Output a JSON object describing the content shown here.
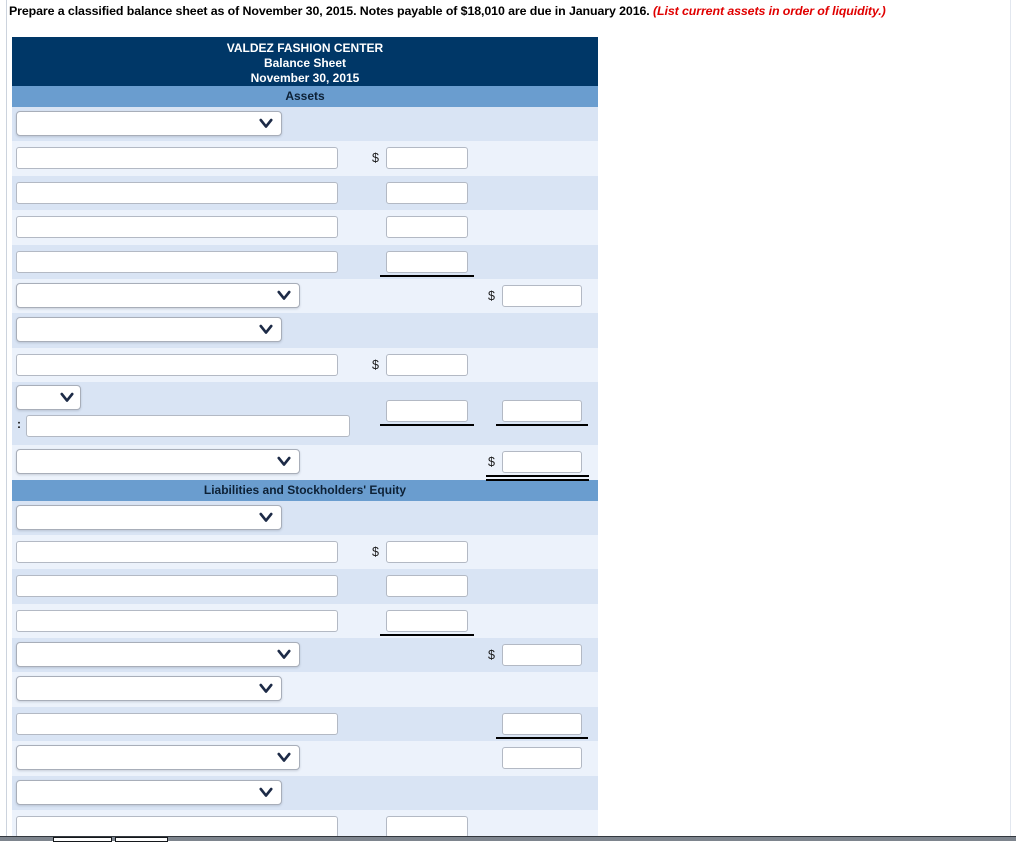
{
  "page": {
    "instruction_main": "Prepare a classified balance sheet as of November 30, 2015. Notes payable of $18,010 are due in January 2016. ",
    "instruction_emphasis": "(List current assets in order of liquidity.)"
  },
  "statement": {
    "company": "VALDEZ FASHION CENTER",
    "report": "Balance Sheet",
    "date": "November 30, 2015",
    "assets_header": "Assets",
    "liabilities_header": "Liabilities and Stockholders' Equity",
    "dollar_sign": "$",
    "less_separator": ":"
  },
  "colors": {
    "header_navy": "#003767",
    "section_bar_blue": "#6a9dcf",
    "row_dark": "#d9e4f4",
    "row_light": "#ecf2fb",
    "emphasis_red": "#e00000",
    "rule_black": "#000000"
  },
  "form": {
    "assets_rows": [
      {
        "bg": "dark",
        "cells": [
          {
            "type": "select",
            "size": "lg"
          }
        ]
      },
      {
        "bg": "light",
        "cells": [
          {
            "type": "text-input"
          },
          {
            "type": "amount",
            "col": "mid",
            "dollar": true
          }
        ]
      },
      {
        "bg": "dark",
        "cells": [
          {
            "type": "text-input"
          },
          {
            "type": "amount",
            "col": "mid"
          }
        ]
      },
      {
        "bg": "light",
        "cells": [
          {
            "type": "text-input"
          },
          {
            "type": "amount",
            "col": "mid"
          }
        ]
      },
      {
        "bg": "dark",
        "cells": [
          {
            "type": "text-input"
          },
          {
            "type": "amount",
            "col": "mid",
            "underline": "single"
          }
        ]
      },
      {
        "bg": "light",
        "cells": [
          {
            "type": "select",
            "size": "xl"
          },
          {
            "type": "amount",
            "col": "right",
            "dollar": true
          }
        ]
      },
      {
        "bg": "dark",
        "cells": [
          {
            "type": "select",
            "size": "lg"
          }
        ]
      },
      {
        "bg": "light",
        "cells": [
          {
            "type": "text-input"
          },
          {
            "type": "amount",
            "col": "mid",
            "dollar": true
          }
        ]
      },
      {
        "bg": "dark",
        "tall": true,
        "cells": [
          {
            "type": "select",
            "size": "sm"
          },
          {
            "type": "colon-input"
          },
          {
            "type": "amount",
            "col": "mid",
            "underline": "single"
          },
          {
            "type": "amount",
            "col": "right",
            "underline": "single"
          }
        ]
      },
      {
        "bg": "light",
        "cells": [
          {
            "type": "select",
            "size": "xl"
          },
          {
            "type": "amount",
            "col": "right",
            "dollar": true,
            "underline": "double"
          }
        ]
      }
    ],
    "liabilities_rows": [
      {
        "bg": "dark",
        "cells": [
          {
            "type": "select",
            "size": "lg"
          }
        ]
      },
      {
        "bg": "light",
        "cells": [
          {
            "type": "text-input"
          },
          {
            "type": "amount",
            "col": "mid",
            "dollar": true
          }
        ]
      },
      {
        "bg": "dark",
        "cells": [
          {
            "type": "text-input"
          },
          {
            "type": "amount",
            "col": "mid"
          }
        ]
      },
      {
        "bg": "light",
        "cells": [
          {
            "type": "text-input"
          },
          {
            "type": "amount",
            "col": "mid",
            "underline": "single"
          }
        ]
      },
      {
        "bg": "dark",
        "cells": [
          {
            "type": "select",
            "size": "xl"
          },
          {
            "type": "amount",
            "col": "right",
            "dollar": true
          }
        ]
      },
      {
        "bg": "light",
        "cells": [
          {
            "type": "select",
            "size": "lg"
          }
        ]
      },
      {
        "bg": "dark",
        "cells": [
          {
            "type": "text-input"
          },
          {
            "type": "amount",
            "col": "right",
            "underline": "single"
          }
        ]
      },
      {
        "bg": "light",
        "cells": [
          {
            "type": "select",
            "size": "xl"
          },
          {
            "type": "amount",
            "col": "right"
          }
        ]
      },
      {
        "bg": "dark",
        "cells": [
          {
            "type": "select",
            "size": "lg"
          }
        ]
      },
      {
        "bg": "light",
        "partial": true,
        "cells": [
          {
            "type": "text-input"
          },
          {
            "type": "amount",
            "col": "mid"
          }
        ]
      }
    ]
  }
}
